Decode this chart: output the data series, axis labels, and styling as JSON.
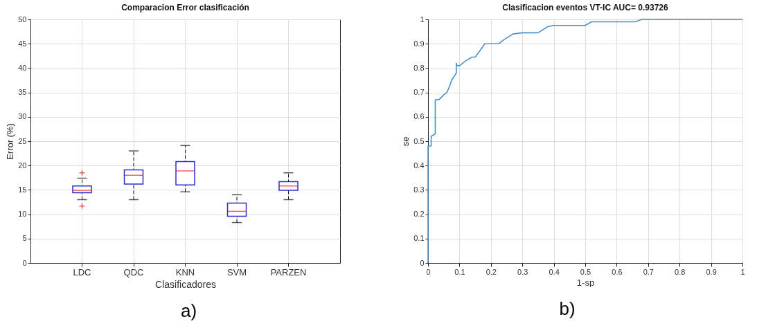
{
  "chart_data": [
    {
      "type": "box",
      "title": "Comparacion Error clasificación",
      "xlabel": "Clasificadores",
      "ylabel": "Error (%)",
      "categories": [
        "LDC",
        "QDC",
        "KNN",
        "SVM",
        "PARZEN"
      ],
      "ylim": [
        0,
        50
      ],
      "yticks": [
        0,
        5,
        10,
        15,
        20,
        25,
        30,
        35,
        40,
        45,
        50
      ],
      "grid": true,
      "annotations": [
        "a)"
      ],
      "series": [
        {
          "color": "#2b2bd6",
          "boxes": [
            {
              "low": 13.0,
              "q1": 14.4,
              "median": 14.9,
              "q3": 15.8,
              "high": 17.4,
              "outliers": [
                18.5,
                11.7
              ]
            },
            {
              "low": 13.0,
              "q1": 16.2,
              "median": 18.0,
              "q3": 19.1,
              "high": 23.0
            },
            {
              "low": 14.6,
              "q1": 16.0,
              "median": 18.9,
              "q3": 20.8,
              "high": 24.1
            },
            {
              "low": 8.3,
              "q1": 9.6,
              "median": 10.6,
              "q3": 12.3,
              "high": 14.0
            },
            {
              "low": 13.0,
              "q1": 14.9,
              "median": 15.8,
              "q3": 16.7,
              "high": 18.5
            }
          ]
        }
      ]
    },
    {
      "type": "line",
      "title": "Clasificacion eventos VT-IC AUC= 0.93726",
      "xlabel": "1-sp",
      "ylabel": "se",
      "xlim": [
        0,
        1
      ],
      "xticks": [
        0,
        0.1,
        0.2,
        0.3,
        0.4,
        0.5,
        0.6,
        0.7,
        0.8,
        0.9,
        1
      ],
      "ylim": [
        0,
        1
      ],
      "yticks": [
        0,
        0.1,
        0.2,
        0.3,
        0.4,
        0.5,
        0.6,
        0.7,
        0.8,
        0.9,
        1
      ],
      "grid": true,
      "annotations": [
        "b)"
      ],
      "series": [
        {
          "color": "#4a8fc9",
          "x": [
            0,
            0,
            0.01,
            0.01,
            0.023,
            0.023,
            0.035,
            0.05,
            0.06,
            0.07,
            0.075,
            0.085,
            0.09,
            0.09,
            0.092,
            0.1,
            0.12,
            0.14,
            0.15,
            0.17,
            0.18,
            0.225,
            0.24,
            0.27,
            0.3,
            0.35,
            0.38,
            0.4,
            0.5,
            0.52,
            0.66,
            0.68,
            1
          ],
          "values": [
            0,
            0.48,
            0.48,
            0.52,
            0.53,
            0.67,
            0.67,
            0.69,
            0.7,
            0.73,
            0.75,
            0.77,
            0.78,
            0.82,
            0.81,
            0.81,
            0.83,
            0.845,
            0.845,
            0.88,
            0.9,
            0.9,
            0.915,
            0.94,
            0.945,
            0.945,
            0.97,
            0.975,
            0.975,
            0.99,
            0.99,
            1,
            1
          ]
        }
      ]
    }
  ]
}
